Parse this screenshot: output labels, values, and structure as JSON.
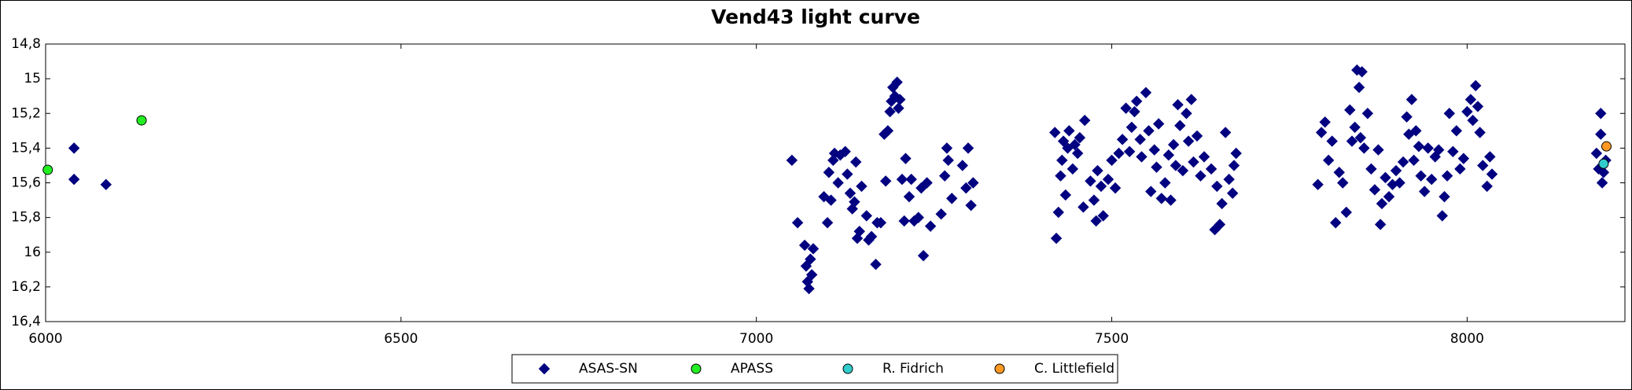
{
  "chart_data": {
    "type": "scatter",
    "title": "Vend43 light curve",
    "xlim": [
      6000,
      8222
    ],
    "xticks": [
      6000,
      6500,
      7000,
      7500,
      8000
    ],
    "ylim": [
      14.8,
      16.4
    ],
    "y_inverted": true,
    "yticks": [
      {
        "value": 14.8,
        "label": "14,8"
      },
      15,
      {
        "value": 15.2,
        "label": "15,2"
      },
      {
        "value": 15.4,
        "label": "15,4"
      },
      {
        "value": 15.6,
        "label": "15,6"
      },
      {
        "value": 15.8,
        "label": "15,8"
      },
      16,
      {
        "value": 16.2,
        "label": "16,2"
      },
      {
        "value": 16.4,
        "label": "16,4"
      }
    ],
    "grid": false,
    "legend": "bottom",
    "series": [
      {
        "name": "ASAS-SN",
        "color": "#000080",
        "marker": "diamond",
        "x": [
          6040,
          6040,
          6085,
          7050,
          7058,
          7068,
          7070,
          7072,
          7074,
          7076,
          7078,
          7080,
          7095,
          7100,
          7102,
          7105,
          7108,
          7110,
          7115,
          7118,
          7125,
          7128,
          7132,
          7135,
          7138,
          7140,
          7142,
          7145,
          7148,
          7155,
          7158,
          7162,
          7168,
          7170,
          7175,
          7180,
          7182,
          7185,
          7188,
          7190,
          7192,
          7195,
          7198,
          7200,
          7202,
          7205,
          7208,
          7210,
          7215,
          7218,
          7222,
          7228,
          7232,
          7235,
          7240,
          7245,
          7260,
          7265,
          7268,
          7270,
          7275,
          7290,
          7295,
          7298,
          7302,
          7305,
          7420,
          7422,
          7425,
          7428,
          7430,
          7432,
          7435,
          7438,
          7440,
          7445,
          7448,
          7452,
          7455,
          7460,
          7462,
          7470,
          7475,
          7478,
          7480,
          7485,
          7488,
          7495,
          7500,
          7505,
          7510,
          7515,
          7520,
          7525,
          7528,
          7532,
          7535,
          7540,
          7542,
          7548,
          7552,
          7555,
          7560,
          7563,
          7566,
          7570,
          7575,
          7580,
          7583,
          7587,
          7590,
          7593,
          7596,
          7600,
          7605,
          7608,
          7612,
          7615,
          7620,
          7625,
          7630,
          7640,
          7645,
          7648,
          7652,
          7655,
          7660,
          7665,
          7670,
          7672,
          7675,
          7790,
          7795,
          7800,
          7805,
          7810,
          7815,
          7820,
          7825,
          7830,
          7835,
          7838,
          7842,
          7845,
          7848,
          7850,
          7852,
          7855,
          7860,
          7865,
          7870,
          7875,
          7878,
          7880,
          7885,
          7890,
          7895,
          7900,
          7905,
          7910,
          7915,
          7918,
          7922,
          7925,
          7928,
          7932,
          7935,
          7940,
          7945,
          7950,
          7955,
          7960,
          7965,
          7968,
          7972,
          7975,
          7980,
          7985,
          7990,
          7995,
          8000,
          8005,
          8008,
          8012,
          8015,
          8018,
          8022,
          8028,
          8032,
          8035,
          8182,
          8185,
          8188,
          8190,
          8192,
          8195,
          8188
        ],
        "values": [
          15.4,
          15.58,
          15.61,
          15.47,
          15.83,
          15.96,
          16.08,
          16.17,
          16.21,
          16.04,
          16.13,
          15.98,
          15.68,
          15.83,
          15.54,
          15.7,
          15.47,
          15.43,
          15.6,
          15.44,
          15.42,
          15.55,
          15.66,
          15.75,
          15.71,
          15.48,
          15.92,
          15.88,
          15.62,
          15.79,
          15.93,
          15.91,
          16.07,
          15.83,
          15.83,
          15.32,
          15.59,
          15.3,
          15.19,
          15.13,
          15.05,
          15.1,
          15.02,
          15.17,
          15.12,
          15.58,
          15.82,
          15.46,
          15.68,
          15.58,
          15.82,
          15.8,
          15.63,
          16.02,
          15.6,
          15.85,
          15.78,
          15.56,
          15.4,
          15.47,
          15.69,
          15.5,
          15.63,
          15.4,
          15.73,
          15.6,
          15.31,
          15.92,
          15.77,
          15.56,
          15.47,
          15.36,
          15.67,
          15.4,
          15.3,
          15.52,
          15.38,
          15.43,
          15.34,
          15.74,
          15.24,
          15.59,
          15.7,
          15.82,
          15.53,
          15.62,
          15.79,
          15.58,
          15.47,
          15.63,
          15.43,
          15.35,
          15.17,
          15.42,
          15.28,
          15.19,
          15.13,
          15.35,
          15.45,
          15.08,
          15.3,
          15.65,
          15.41,
          15.51,
          15.26,
          15.69,
          15.6,
          15.44,
          15.7,
          15.38,
          15.5,
          15.15,
          15.27,
          15.53,
          15.2,
          15.36,
          15.12,
          15.48,
          15.33,
          15.56,
          15.45,
          15.52,
          15.87,
          15.62,
          15.84,
          15.72,
          15.31,
          15.58,
          15.66,
          15.5,
          15.43,
          15.61,
          15.31,
          15.25,
          15.47,
          15.36,
          15.83,
          15.54,
          15.6,
          15.77,
          15.18,
          15.36,
          15.28,
          14.95,
          15.05,
          15.34,
          14.96,
          15.4,
          15.2,
          15.52,
          15.64,
          15.41,
          15.84,
          15.72,
          15.57,
          15.68,
          15.61,
          15.53,
          15.6,
          15.48,
          15.22,
          15.32,
          15.12,
          15.47,
          15.3,
          15.39,
          15.56,
          15.65,
          15.4,
          15.58,
          15.45,
          15.41,
          15.79,
          15.68,
          15.56,
          15.2,
          15.42,
          15.3,
          15.52,
          15.46,
          15.19,
          15.12,
          15.24,
          15.04,
          15.16,
          15.31,
          15.5,
          15.62,
          15.45,
          15.55,
          15.43,
          15.52,
          15.2,
          15.6,
          15.54,
          15.47,
          15.32
        ]
      },
      {
        "name": "APASS",
        "color": "#22ee22",
        "marker": "circle",
        "x": [
          6003,
          6135
        ],
        "values": [
          15.525,
          15.24
        ]
      },
      {
        "name": "R. Fidrich",
        "color": "#33cccc",
        "marker": "circle",
        "x": [
          8192
        ],
        "values": [
          15.49
        ]
      },
      {
        "name": "C. Littlefield",
        "color": "#ff9922",
        "marker": "circle",
        "x": [
          8196
        ],
        "values": [
          15.39
        ]
      }
    ]
  }
}
